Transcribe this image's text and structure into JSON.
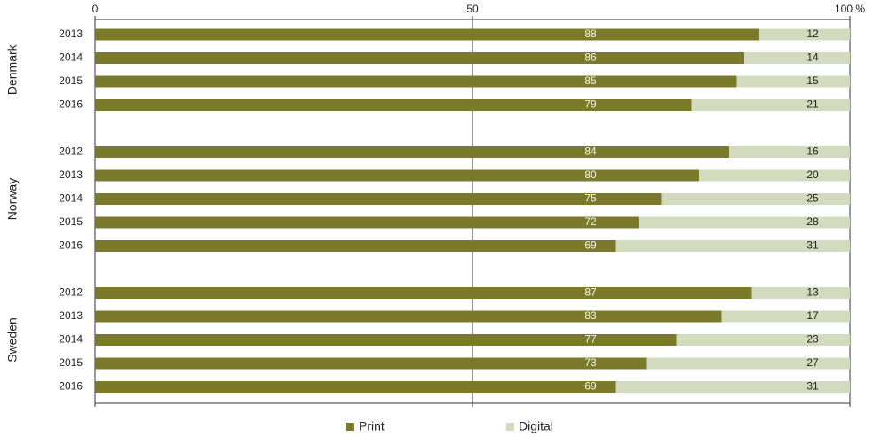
{
  "chart_data": {
    "type": "stacked-bar-horizontal",
    "groups": [
      {
        "name": "Denmark",
        "categories": [
          "2013",
          "2014",
          "2015",
          "2016"
        ]
      },
      {
        "name": "Norway",
        "categories": [
          "2012",
          "2013",
          "2014",
          "2015",
          "2016"
        ]
      },
      {
        "name": "Sweden",
        "categories": [
          "2012",
          "2013",
          "2014",
          "2015",
          "2016"
        ]
      }
    ],
    "series": [
      {
        "name": "Print",
        "color": "#7b7a2a",
        "values": [
          88,
          86,
          85,
          79,
          84,
          80,
          75,
          72,
          69,
          87,
          83,
          77,
          73,
          69
        ]
      },
      {
        "name": "Digital",
        "color": "#d3dbbf",
        "values": [
          12,
          14,
          15,
          21,
          16,
          20,
          25,
          28,
          31,
          13,
          17,
          23,
          27,
          31
        ]
      }
    ],
    "xlim": [
      0,
      100
    ],
    "xticks": [
      0,
      50,
      {
        "value": 100,
        "label": "100 %"
      }
    ],
    "grid": true,
    "legend": "bottom"
  }
}
